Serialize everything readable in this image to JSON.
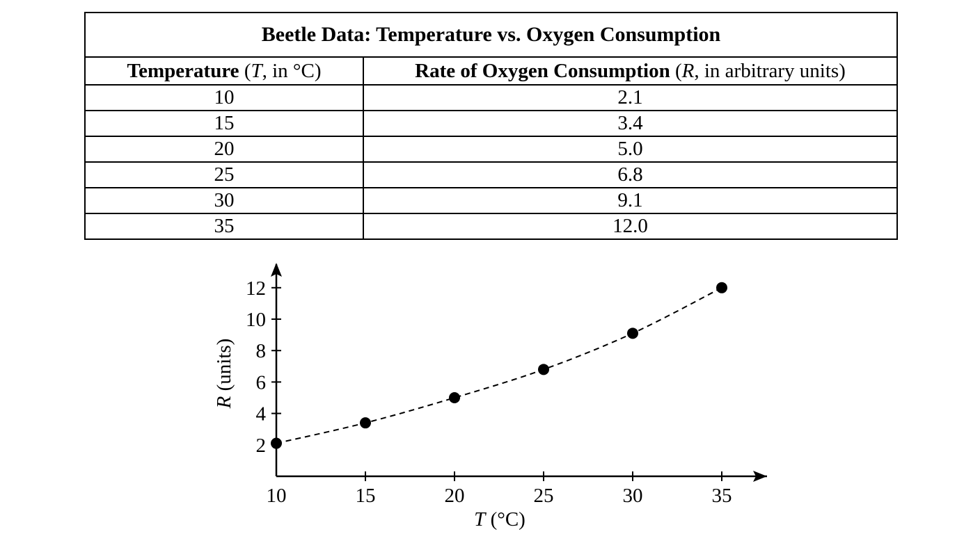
{
  "table": {
    "title": "Beetle Data: Temperature vs. Oxygen Consumption",
    "col1_header_bold": "Temperature",
    "col1_header_open": " (",
    "col1_header_var": "T",
    "col1_header_rest": ", in °C)",
    "col2_header_bold": "Rate of Oxygen Consumption",
    "col2_header_open": " (",
    "col2_header_var": "R",
    "col2_header_rest": ", in arbitrary units)",
    "rows": [
      {
        "temperature": "10",
        "rate": "2.1"
      },
      {
        "temperature": "15",
        "rate": "3.4"
      },
      {
        "temperature": "20",
        "rate": "5.0"
      },
      {
        "temperature": "25",
        "rate": "6.8"
      },
      {
        "temperature": "30",
        "rate": "9.1"
      },
      {
        "temperature": "35",
        "rate": "12.0"
      }
    ]
  },
  "chart_data": {
    "type": "scatter",
    "title": "",
    "xlabel_var": "T",
    "xlabel_unit": " (°C)",
    "ylabel_var": "R",
    "ylabel_unit": " (units)",
    "x_ticks": [
      10,
      15,
      20,
      25,
      30,
      35
    ],
    "y_ticks": [
      2,
      4,
      6,
      8,
      10,
      12
    ],
    "x_tick_labels": [
      "10",
      "15",
      "20",
      "25",
      "30",
      "35"
    ],
    "y_tick_labels": [
      "2",
      "4",
      "6",
      "8",
      "10",
      "12"
    ],
    "xlim": [
      10,
      37.5
    ],
    "ylim": [
      0,
      13.5
    ],
    "grid": false,
    "trend_line": "dashed curve through points",
    "series": [
      {
        "x": [
          10,
          15,
          20,
          25,
          30,
          35
        ],
        "y": [
          2.1,
          3.4,
          5.0,
          6.8,
          9.1,
          12.0
        ]
      }
    ],
    "colors": {
      "points": "#000000",
      "line": "#000000"
    }
  }
}
